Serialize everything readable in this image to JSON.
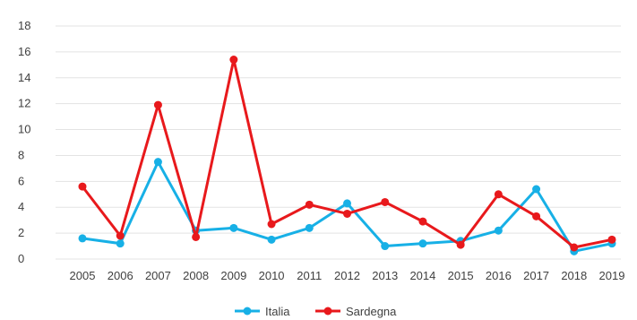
{
  "chart_data": {
    "type": "line",
    "title": "",
    "xlabel": "",
    "ylabel": "",
    "ylim": [
      0,
      18
    ],
    "y_ticks": [
      0,
      2,
      4,
      6,
      8,
      10,
      12,
      14,
      16,
      18
    ],
    "grid": true,
    "legend_position": "bottom",
    "categories": [
      "2005",
      "2006",
      "2007",
      "2008",
      "2009",
      "2010",
      "2011",
      "2012",
      "2013",
      "2014",
      "2015",
      "2016",
      "2017",
      "2018",
      "2019"
    ],
    "series": [
      {
        "name": "Italia",
        "color": "#17b0e6",
        "values": [
          1.6,
          1.2,
          7.5,
          2.2,
          2.4,
          1.5,
          2.4,
          4.3,
          1.0,
          1.2,
          1.4,
          2.2,
          5.4,
          0.6,
          1.2
        ]
      },
      {
        "name": "Sardegna",
        "color": "#e8191c",
        "values": [
          5.6,
          1.8,
          11.9,
          1.7,
          15.4,
          2.7,
          4.2,
          3.5,
          4.4,
          2.9,
          1.1,
          5.0,
          3.3,
          0.9,
          1.5
        ]
      }
    ]
  }
}
